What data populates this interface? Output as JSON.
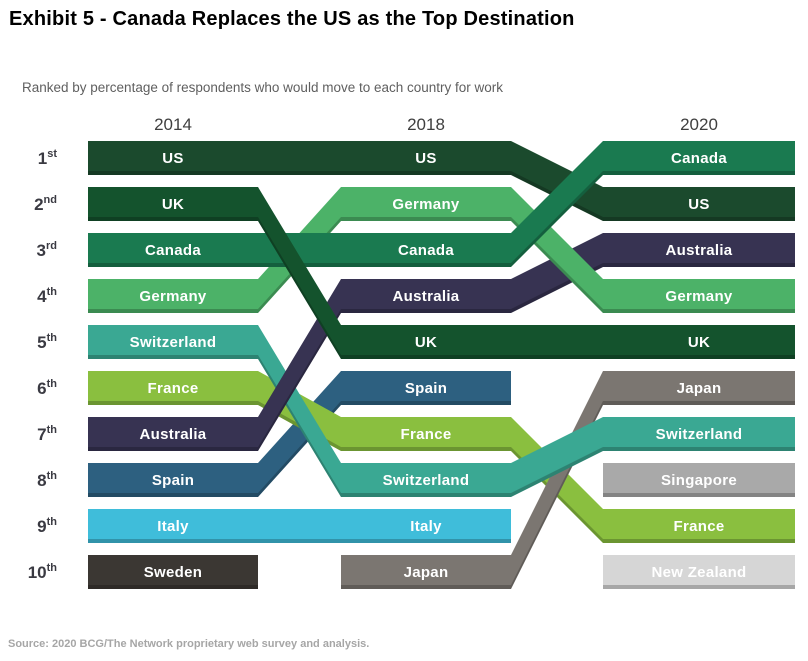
{
  "header": {
    "title": "Exhibit 5 - Canada Replaces the US as the Top Destination",
    "subtitle": "Ranked by percentage of respondents who would move to each country for work"
  },
  "footer": {
    "source": "Source: 2020 BCG/The Network proprietary web survey and analysis."
  },
  "chart_data": {
    "type": "bump",
    "title": "Exhibit 5 - Canada Replaces the US as the Top Destination",
    "subtitle": "Ranked by percentage of respondents who would move to each country for work",
    "years": [
      "2014",
      "2018",
      "2020"
    ],
    "rank_labels": [
      "1st",
      "2nd",
      "3rd",
      "4th",
      "5th",
      "6th",
      "7th",
      "8th",
      "9th",
      "10th"
    ],
    "rankings": {
      "2014": [
        "US",
        "UK",
        "Canada",
        "Germany",
        "Switzerland",
        "France",
        "Australia",
        "Spain",
        "Italy",
        "Sweden"
      ],
      "2018": [
        "US",
        "Germany",
        "Canada",
        "Australia",
        "UK",
        "Spain",
        "France",
        "Switzerland",
        "Italy",
        "Japan"
      ],
      "2020": [
        "Canada",
        "US",
        "Australia",
        "Germany",
        "UK",
        "Japan",
        "Switzerland",
        "Singapore",
        "France",
        "New Zealand"
      ]
    },
    "series": [
      {
        "name": "US",
        "color": "#1b4a2d",
        "ranks": {
          "2014": 1,
          "2018": 1,
          "2020": 2
        }
      },
      {
        "name": "UK",
        "color": "#14532d",
        "ranks": {
          "2014": 2,
          "2018": 5,
          "2020": 5
        }
      },
      {
        "name": "Canada",
        "color": "#1a7a50",
        "ranks": {
          "2014": 3,
          "2018": 3,
          "2020": 1
        }
      },
      {
        "name": "Germany",
        "color": "#4cb268",
        "ranks": {
          "2014": 4,
          "2018": 2,
          "2020": 4
        }
      },
      {
        "name": "Switzerland",
        "color": "#3aa893",
        "ranks": {
          "2014": 5,
          "2018": 8,
          "2020": 7
        }
      },
      {
        "name": "France",
        "color": "#8abf3f",
        "ranks": {
          "2014": 6,
          "2018": 7,
          "2020": 9
        }
      },
      {
        "name": "Australia",
        "color": "#373352",
        "ranks": {
          "2014": 7,
          "2018": 4,
          "2020": 3
        }
      },
      {
        "name": "Spain",
        "color": "#2d6080",
        "ranks": {
          "2014": 8,
          "2018": 6,
          "2020": null
        }
      },
      {
        "name": "Italy",
        "color": "#3fbdda",
        "ranks": {
          "2014": 9,
          "2018": 9,
          "2020": null
        }
      },
      {
        "name": "Sweden",
        "color": "#3b3733",
        "ranks": {
          "2014": 10,
          "2018": null,
          "2020": null
        }
      },
      {
        "name": "Japan",
        "color": "#7b7671",
        "ranks": {
          "2014": null,
          "2018": 10,
          "2020": 6
        }
      },
      {
        "name": "Singapore",
        "color": "#a9a9a9",
        "ranks": {
          "2014": null,
          "2018": null,
          "2020": 8
        }
      },
      {
        "name": "New Zealand",
        "color": "#d6d6d6",
        "ranks": {
          "2014": null,
          "2018": null,
          "2020": 10
        }
      }
    ],
    "draw_order": [
      "New Zealand",
      "Singapore",
      "Sweden",
      "Italy",
      "Spain",
      "France",
      "Japan",
      "Switzerland",
      "Australia",
      "Germany",
      "US",
      "Canada",
      "UK"
    ],
    "bar_label_color": "#ffffff",
    "axis_text_color": "#3f3f3f",
    "legend_position": "none",
    "grid": false
  }
}
